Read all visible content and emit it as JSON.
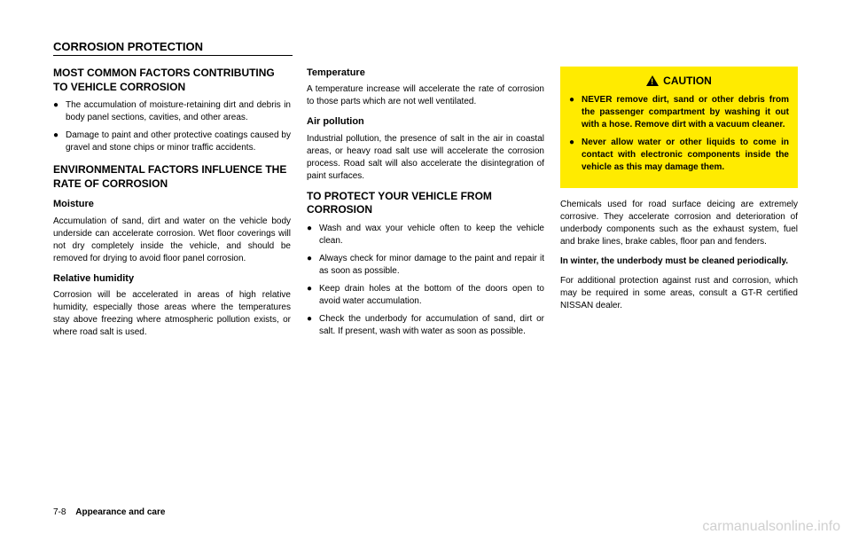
{
  "header": "CORROSION PROTECTION",
  "col1": {
    "h2a": "MOST COMMON FACTORS CONTRIBUTING TO VEHICLE CORROSION",
    "bullets1": [
      "The accumulation of moisture-retaining dirt and debris in body panel sections, cavities, and other areas.",
      "Damage to paint and other protective coatings caused by gravel and stone chips or minor traffic accidents."
    ],
    "h2b": "ENVIRONMENTAL FACTORS INFLUENCE THE RATE OF CORROSION",
    "h3a": "Moisture",
    "p_moisture": "Accumulation of sand, dirt and water on the vehicle body underside can accelerate corrosion. Wet floor coverings will not dry completely inside the vehicle, and should be removed for drying to avoid floor panel corrosion.",
    "h3b": "Relative humidity",
    "p_humidity": "Corrosion will be accelerated in areas of high relative humidity, especially those areas where the temperatures stay above freezing where atmospheric pollution exists, or where road salt is used."
  },
  "col2": {
    "h3a": "Temperature",
    "p_temp": "A temperature increase will accelerate the rate of corrosion to those parts which are not well ventilated.",
    "h3b": "Air pollution",
    "p_air": "Industrial pollution, the presence of salt in the air in coastal areas, or heavy road salt use will accelerate the corrosion process. Road salt will also accelerate the disintegration of paint surfaces.",
    "h2a": "TO PROTECT YOUR VEHICLE FROM CORROSION",
    "bullets1": [
      "Wash and wax your vehicle often to keep the vehicle clean.",
      "Always check for minor damage to the paint and repair it as soon as possible.",
      "Keep drain holes at the bottom of the doors open to avoid water accumulation.",
      "Check the underbody for accumulation of sand, dirt or salt. If present, wash with water as soon as possible."
    ]
  },
  "col3": {
    "caution_label": "CAUTION",
    "caution_bullets": [
      "NEVER remove dirt, sand or other debris from the passenger compartment by washing it out with a hose. Remove dirt with a vacuum cleaner.",
      "Never allow water or other liquids to come in contact with electronic components inside the vehicle as this may damage them."
    ],
    "p1": "Chemicals used for road surface deicing are extremely corrosive. They accelerate corrosion and deterioration of underbody components such as the exhaust system, fuel and brake lines, brake cables, floor pan and fenders.",
    "p2_bold": "In winter, the underbody must be cleaned periodically.",
    "p3": "For additional protection against rust and corrosion, which may be required in some areas, consult a GT-R certified NISSAN dealer."
  },
  "footer": {
    "page": "7-8",
    "section": "Appearance and care"
  },
  "watermark": "carmanualsonline.info",
  "colors": {
    "caution_bg": "#ffeb00",
    "text": "#000000",
    "watermark": "#d0d0d0"
  }
}
